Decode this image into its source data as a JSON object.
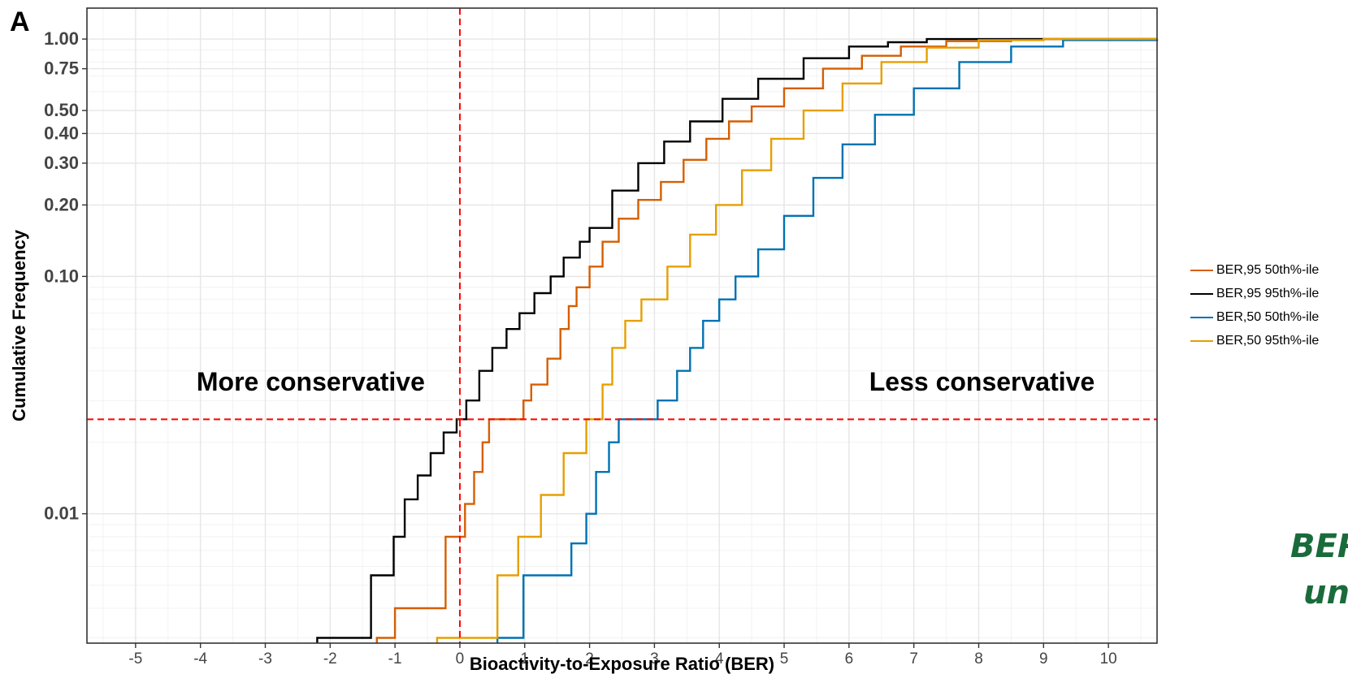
{
  "panel_label": "A",
  "side_note": [
    "BER",
    "un"
  ],
  "chart_data": {
    "type": "line",
    "step": true,
    "xlabel": "Bioactivity-to-Exposure Ratio (BER)",
    "ylabel": "Cumulative Frequency",
    "y_scale": "log",
    "xlim": [
      -5.75,
      10.75
    ],
    "ylim": [
      0.00285,
      1.35
    ],
    "x_ticks": [
      -5,
      -4,
      -3,
      -2,
      -1,
      0,
      1,
      2,
      3,
      4,
      5,
      6,
      7,
      8,
      9,
      10
    ],
    "y_ticks": [
      0.01,
      0.1,
      0.2,
      0.3,
      0.4,
      0.5,
      0.75,
      1.0
    ],
    "y_tick_labels": [
      "0.01",
      "0.10",
      "0.20",
      "0.30",
      "0.40",
      "0.50",
      "0.75",
      "1.00"
    ],
    "grid": true,
    "legend_position": "right",
    "reference_lines": [
      {
        "orientation": "vertical",
        "value": 0,
        "color": "#ff0000",
        "style": "dashed"
      },
      {
        "orientation": "horizontal",
        "value": 0.025,
        "color": "#ff0000",
        "style": "dashed"
      }
    ],
    "annotations": [
      {
        "text": "More conservative",
        "x": -2.3,
        "y": 0.033
      },
      {
        "text": "Less conservative",
        "x": 8.05,
        "y": 0.033
      }
    ],
    "series": [
      {
        "name": "BER,95 50th%-ile",
        "color": "#d55e00",
        "x": [
          -1.28,
          -1.0,
          -0.22,
          0.08,
          0.22,
          0.35,
          0.45,
          0.6,
          0.98,
          1.1,
          1.35,
          1.55,
          1.68,
          1.8,
          2.0,
          2.2,
          2.45,
          2.75,
          3.1,
          3.45,
          3.8,
          4.15,
          4.5,
          5.0,
          5.6,
          6.2,
          6.8,
          7.5,
          8.5,
          10.75
        ],
        "y": [
          0.003,
          0.004,
          0.008,
          0.011,
          0.015,
          0.02,
          0.025,
          0.025,
          0.03,
          0.035,
          0.045,
          0.06,
          0.075,
          0.09,
          0.11,
          0.14,
          0.175,
          0.21,
          0.25,
          0.31,
          0.38,
          0.45,
          0.52,
          0.62,
          0.75,
          0.85,
          0.93,
          0.98,
          1.0,
          1.0
        ]
      },
      {
        "name": "BER,95 95th%-ile",
        "color": "#000000",
        "x": [
          -2.2,
          -1.37,
          -1.02,
          -0.85,
          -0.65,
          -0.45,
          -0.25,
          -0.05,
          0.1,
          0.3,
          0.5,
          0.72,
          0.92,
          1.15,
          1.4,
          1.6,
          1.85,
          2.0,
          2.35,
          2.75,
          3.15,
          3.55,
          4.05,
          4.6,
          5.3,
          6.0,
          6.6,
          7.2,
          8.0,
          10.75
        ],
        "y": [
          0.003,
          0.0055,
          0.008,
          0.0115,
          0.0145,
          0.018,
          0.022,
          0.025,
          0.03,
          0.04,
          0.05,
          0.06,
          0.07,
          0.085,
          0.1,
          0.12,
          0.14,
          0.16,
          0.23,
          0.3,
          0.37,
          0.45,
          0.56,
          0.68,
          0.83,
          0.93,
          0.97,
          1.0,
          1.0,
          1.0
        ]
      },
      {
        "name": "BER,50 50th%-ile",
        "color": "#0072b2",
        "x": [
          0.58,
          0.98,
          1.72,
          1.95,
          2.1,
          2.3,
          2.45,
          2.75,
          3.05,
          3.35,
          3.55,
          3.75,
          4.0,
          4.25,
          4.6,
          5.0,
          5.45,
          5.9,
          6.4,
          7.0,
          7.7,
          8.5,
          9.3,
          10.75
        ],
        "y": [
          0.003,
          0.0055,
          0.0075,
          0.01,
          0.015,
          0.02,
          0.025,
          0.025,
          0.03,
          0.04,
          0.05,
          0.065,
          0.08,
          0.1,
          0.13,
          0.18,
          0.26,
          0.36,
          0.48,
          0.62,
          0.8,
          0.93,
          0.99,
          1.0
        ]
      },
      {
        "name": "BER,50 95th%-ile",
        "color": "#e69f00",
        "x": [
          -0.35,
          0.58,
          0.9,
          1.25,
          1.6,
          1.95,
          2.2,
          2.35,
          2.55,
          2.8,
          3.2,
          3.55,
          3.95,
          4.35,
          4.8,
          5.3,
          5.9,
          6.5,
          7.2,
          8.0,
          9.0,
          10.75
        ],
        "y": [
          0.003,
          0.0055,
          0.008,
          0.012,
          0.018,
          0.025,
          0.035,
          0.05,
          0.065,
          0.08,
          0.11,
          0.15,
          0.2,
          0.28,
          0.38,
          0.5,
          0.65,
          0.8,
          0.92,
          0.99,
          1.0,
          1.0
        ]
      }
    ]
  }
}
